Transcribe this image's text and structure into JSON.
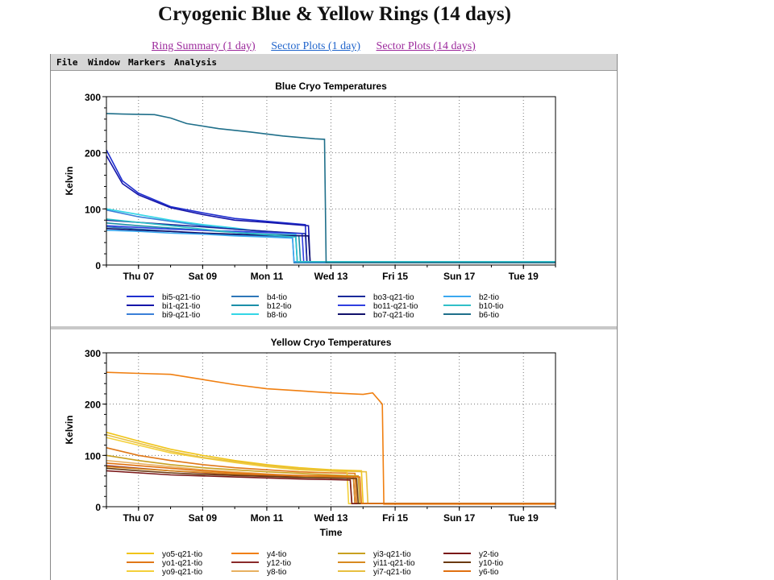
{
  "page": {
    "title": "Cryogenic Blue & Yellow Rings (14 days)",
    "links": [
      "Ring Summary (1 day)",
      "Sector Plots (1 day)",
      "Sector Plots (14 days)"
    ]
  },
  "menu": [
    "File",
    "Window",
    "Markers",
    "Analysis"
  ],
  "chart_data": [
    {
      "type": "line",
      "title": "Blue Cryo Temperatures",
      "ylabel": "Kelvin",
      "xlabel": "",
      "ylim": [
        0,
        300
      ],
      "xlim": [
        0,
        14
      ],
      "yticks": [
        0,
        100,
        200,
        300
      ],
      "xtick_labels": [
        "Thu 07",
        "Sat 09",
        "Mon 11",
        "Wed 13",
        "Fri 15",
        "Sun 17",
        "Tue 19"
      ],
      "grid": true,
      "legend_position": "bottom",
      "series": [
        {
          "name": "bi5-q21-tio",
          "color": "#1f2fcf",
          "points": [
            [
              0,
              205
            ],
            [
              0.5,
              150
            ],
            [
              1,
              128
            ],
            [
              2,
              104
            ],
            [
              3,
              93
            ],
            [
              4,
              83
            ],
            [
              5,
              78
            ],
            [
              6.2,
              72
            ],
            [
              6.25,
              6
            ],
            [
              14,
              6
            ]
          ]
        },
        {
          "name": "bi1-q21-tio",
          "color": "#1515a8",
          "points": [
            [
              0,
              195
            ],
            [
              0.5,
              145
            ],
            [
              1,
              125
            ],
            [
              2,
              102
            ],
            [
              3,
              90
            ],
            [
              4,
              80
            ],
            [
              5,
              76
            ],
            [
              6.3,
              70
            ],
            [
              6.35,
              6
            ],
            [
              14,
              6
            ]
          ]
        },
        {
          "name": "bi9-q21-tio",
          "color": "#3a7fd8",
          "points": [
            [
              0,
              98
            ],
            [
              1,
              86
            ],
            [
              2,
              78
            ],
            [
              3,
              70
            ],
            [
              4,
              64
            ],
            [
              5,
              60
            ],
            [
              5.9,
              56
            ],
            [
              5.95,
              6
            ],
            [
              14,
              6
            ]
          ]
        },
        {
          "name": "b4-tio",
          "color": "#2e77b8",
          "points": [
            [
              0,
              68
            ],
            [
              1,
              64
            ],
            [
              2,
              60
            ],
            [
              3,
              56
            ],
            [
              4,
              53
            ],
            [
              5,
              51
            ],
            [
              5.8,
              50
            ],
            [
              5.85,
              4
            ],
            [
              14,
              4
            ]
          ]
        },
        {
          "name": "b12-tio",
          "color": "#1b8fa8",
          "points": [
            [
              0,
              75
            ],
            [
              1,
              70
            ],
            [
              2,
              66
            ],
            [
              3,
              62
            ],
            [
              4,
              58
            ],
            [
              5,
              55
            ],
            [
              6,
              52
            ],
            [
              6.05,
              6
            ],
            [
              14,
              6
            ]
          ]
        },
        {
          "name": "b8-tio",
          "color": "#33d6e6",
          "points": [
            [
              0,
              100
            ],
            [
              1,
              90
            ],
            [
              2,
              80
            ],
            [
              3,
              72
            ],
            [
              4,
              66
            ],
            [
              5,
              58
            ],
            [
              5.9,
              55
            ],
            [
              5.95,
              6
            ],
            [
              14,
              6
            ]
          ]
        },
        {
          "name": "bo3-q21-tio",
          "color": "#1a2a9a",
          "points": [
            [
              0,
              80
            ],
            [
              1,
              76
            ],
            [
              2,
              72
            ],
            [
              3,
              68
            ],
            [
              4,
              64
            ],
            [
              5,
              60
            ],
            [
              6.2,
              56
            ],
            [
              6.25,
              6
            ],
            [
              14,
              6
            ]
          ]
        },
        {
          "name": "bo11-q21-tio",
          "color": "#2f3fe0",
          "points": [
            [
              0,
              70
            ],
            [
              1,
              67
            ],
            [
              2,
              64
            ],
            [
              3,
              62
            ],
            [
              4,
              60
            ],
            [
              5,
              58
            ],
            [
              6.1,
              56
            ],
            [
              6.15,
              6
            ],
            [
              14,
              6
            ]
          ]
        },
        {
          "name": "bo7-q21-tio",
          "color": "#10106a",
          "points": [
            [
              0,
              65
            ],
            [
              1,
              62
            ],
            [
              2,
              60
            ],
            [
              3,
              57
            ],
            [
              4,
              55
            ],
            [
              5,
              53
            ],
            [
              6.3,
              52
            ],
            [
              6.35,
              6
            ],
            [
              14,
              6
            ]
          ]
        },
        {
          "name": "b2-tio",
          "color": "#3aa8f0",
          "points": [
            [
              0,
              62
            ],
            [
              1,
              60
            ],
            [
              2,
              57
            ],
            [
              3,
              55
            ],
            [
              4,
              52
            ],
            [
              5,
              50
            ],
            [
              5.8,
              48
            ],
            [
              5.85,
              6
            ],
            [
              14,
              6
            ]
          ]
        },
        {
          "name": "b10-tio",
          "color": "#30c0c8",
          "points": [
            [
              0,
              82
            ],
            [
              1,
              76
            ],
            [
              2,
              70
            ],
            [
              3,
              64
            ],
            [
              4,
              58
            ],
            [
              5,
              54
            ],
            [
              5.9,
              50
            ],
            [
              5.95,
              6
            ],
            [
              14,
              6
            ]
          ]
        },
        {
          "name": "b6-tio",
          "color": "#1f6f8a",
          "points": [
            [
              0,
              270
            ],
            [
              0.5,
              269
            ],
            [
              1.5,
              268
            ],
            [
              2,
              262
            ],
            [
              2.5,
              252
            ],
            [
              3.5,
              243
            ],
            [
              4.5,
              237
            ],
            [
              5.5,
              230
            ],
            [
              6.5,
              225
            ],
            [
              6.8,
              224
            ],
            [
              6.85,
              4
            ],
            [
              14,
              4
            ]
          ]
        }
      ]
    },
    {
      "type": "line",
      "title": "Yellow Cryo Temperatures",
      "ylabel": "Kelvin",
      "xlabel": "Time",
      "ylim": [
        0,
        300
      ],
      "xlim": [
        0,
        14
      ],
      "yticks": [
        0,
        100,
        200,
        300
      ],
      "xtick_labels": [
        "Thu 07",
        "Sat 09",
        "Mon 11",
        "Wed 13",
        "Fri 15",
        "Sun 17",
        "Tue 19"
      ],
      "grid": true,
      "legend_position": "bottom",
      "series": [
        {
          "name": "yo5-q21-tio",
          "color": "#f0c419",
          "points": [
            [
              0,
              145
            ],
            [
              1,
              128
            ],
            [
              2,
              112
            ],
            [
              3,
              100
            ],
            [
              4,
              90
            ],
            [
              5,
              82
            ],
            [
              6,
              76
            ],
            [
              7,
              72
            ],
            [
              7.95,
              70
            ],
            [
              8,
              6
            ],
            [
              14,
              6
            ]
          ]
        },
        {
          "name": "yo1-q21-tio",
          "color": "#e07818",
          "points": [
            [
              0,
              115
            ],
            [
              1,
              100
            ],
            [
              2,
              90
            ],
            [
              3,
              82
            ],
            [
              4,
              76
            ],
            [
              5,
              72
            ],
            [
              6,
              68
            ],
            [
              7,
              66
            ],
            [
              7.75,
              65
            ],
            [
              7.8,
              6
            ],
            [
              14,
              6
            ]
          ]
        },
        {
          "name": "yo9-q21-tio",
          "color": "#f4d03a",
          "points": [
            [
              0,
              135
            ],
            [
              1,
              120
            ],
            [
              2,
              105
            ],
            [
              3,
              95
            ],
            [
              4,
              86
            ],
            [
              5,
              78
            ],
            [
              6,
              72
            ],
            [
              7.5,
              68
            ],
            [
              7.55,
              6
            ],
            [
              14,
              6
            ]
          ]
        },
        {
          "name": "y4-tio",
          "color": "#f07f10",
          "points": [
            [
              0,
              262
            ],
            [
              1,
              260
            ],
            [
              2,
              258
            ],
            [
              3,
              248
            ],
            [
              4,
              238
            ],
            [
              5,
              230
            ],
            [
              6,
              226
            ],
            [
              7,
              222
            ],
            [
              8,
              219
            ],
            [
              8.3,
              222
            ],
            [
              8.6,
              200
            ],
            [
              8.65,
              5
            ],
            [
              14,
              5
            ]
          ]
        },
        {
          "name": "y12-tio",
          "color": "#8a2a2a",
          "points": [
            [
              0,
              80
            ],
            [
              1,
              75
            ],
            [
              2,
              70
            ],
            [
              3,
              66
            ],
            [
              4,
              63
            ],
            [
              5,
              60
            ],
            [
              6,
              58
            ],
            [
              7,
              56
            ],
            [
              7.7,
              55
            ],
            [
              7.75,
              6
            ],
            [
              14,
              6
            ]
          ]
        },
        {
          "name": "y8-tio",
          "color": "#e8b060",
          "points": [
            [
              0,
              90
            ],
            [
              1,
              84
            ],
            [
              2,
              78
            ],
            [
              3,
              72
            ],
            [
              4,
              68
            ],
            [
              5,
              64
            ],
            [
              6,
              60
            ],
            [
              7,
              57
            ],
            [
              7.6,
              56
            ],
            [
              7.65,
              6
            ],
            [
              14,
              6
            ]
          ]
        },
        {
          "name": "yi3-q21-tio",
          "color": "#c8a020",
          "points": [
            [
              0,
              100
            ],
            [
              1,
              90
            ],
            [
              2,
              82
            ],
            [
              3,
              76
            ],
            [
              4,
              72
            ],
            [
              5,
              68
            ],
            [
              6,
              65
            ],
            [
              7,
              62
            ],
            [
              7.85,
              60
            ],
            [
              7.9,
              6
            ],
            [
              14,
              6
            ]
          ]
        },
        {
          "name": "yi11-q21-tio",
          "color": "#d88a20",
          "points": [
            [
              0,
              78
            ],
            [
              1,
              74
            ],
            [
              2,
              70
            ],
            [
              3,
              67
            ],
            [
              4,
              64
            ],
            [
              5,
              62
            ],
            [
              6,
              60
            ],
            [
              7,
              59
            ],
            [
              7.7,
              58
            ],
            [
              7.75,
              6
            ],
            [
              14,
              6
            ]
          ]
        },
        {
          "name": "yi7-q21-tio",
          "color": "#e8c040",
          "points": [
            [
              0,
              140
            ],
            [
              1,
              124
            ],
            [
              2,
              108
            ],
            [
              3,
              96
            ],
            [
              4,
              88
            ],
            [
              5,
              80
            ],
            [
              6,
              74
            ],
            [
              7,
              70
            ],
            [
              8.1,
              68
            ],
            [
              8.15,
              6
            ],
            [
              14,
              6
            ]
          ]
        },
        {
          "name": "y2-tio",
          "color": "#7a1818",
          "points": [
            [
              0,
              70
            ],
            [
              1,
              66
            ],
            [
              2,
              62
            ],
            [
              3,
              60
            ],
            [
              4,
              58
            ],
            [
              5,
              56
            ],
            [
              6,
              54
            ],
            [
              7,
              53
            ],
            [
              7.6,
              52
            ],
            [
              7.65,
              6
            ],
            [
              14,
              6
            ]
          ]
        },
        {
          "name": "y10-tio",
          "color": "#6a3a10",
          "points": [
            [
              0,
              75
            ],
            [
              1,
              70
            ],
            [
              2,
              66
            ],
            [
              3,
              63
            ],
            [
              4,
              61
            ],
            [
              5,
              59
            ],
            [
              6,
              57
            ],
            [
              7,
              56
            ],
            [
              7.8,
              55
            ],
            [
              7.85,
              6
            ],
            [
              14,
              6
            ]
          ]
        },
        {
          "name": "y6-tio",
          "color": "#e07010",
          "points": [
            [
              0,
              85
            ],
            [
              1,
              80
            ],
            [
              2,
              75
            ],
            [
              3,
              70
            ],
            [
              4,
              66
            ],
            [
              5,
              63
            ],
            [
              6,
              61
            ],
            [
              7,
              60
            ],
            [
              7.9,
              58
            ],
            [
              7.95,
              6
            ],
            [
              14,
              6
            ]
          ]
        }
      ]
    }
  ]
}
